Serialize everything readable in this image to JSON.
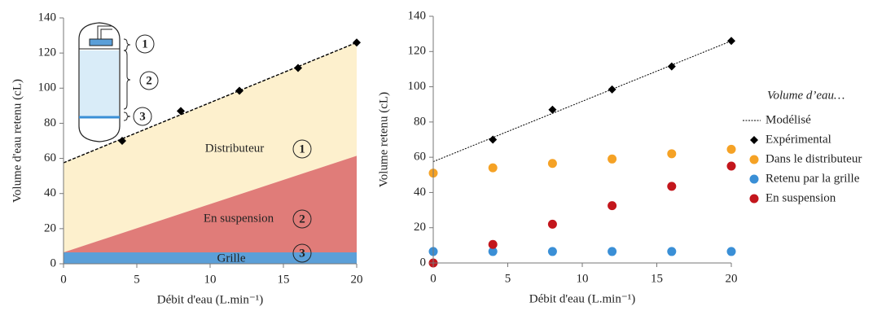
{
  "chart_data": [
    {
      "type": "area",
      "ylabel": "Volume d'eau retenu (cL)",
      "xlabel": "Débit d'eau (L.min⁻¹)",
      "xlim": [
        0,
        20
      ],
      "ylim": [
        0,
        140
      ],
      "xticks": [
        0,
        5,
        10,
        15,
        20
      ],
      "yticks": [
        0,
        20,
        40,
        60,
        80,
        100,
        120,
        140
      ],
      "series": [
        {
          "type": "area",
          "color": "#5b9fd8",
          "x": [
            0,
            20
          ],
          "values": [
            6.5,
            6.5
          ]
        },
        {
          "type": "area",
          "color": "#e07c79",
          "x": [
            0,
            20
          ],
          "values": [
            0,
            55
          ]
        },
        {
          "type": "area",
          "color": "#fdf0cd",
          "x": [
            0,
            20
          ],
          "values": [
            51,
            64.5
          ]
        },
        {
          "type": "line",
          "color": "#000000",
          "line_style": "dashed",
          "x": [
            0,
            20
          ],
          "values": [
            57.5,
            126
          ]
        },
        {
          "type": "scatter",
          "color": "#000000",
          "marker": "diamond",
          "x": [
            4,
            8,
            12,
            16,
            20
          ],
          "values": [
            70,
            87,
            98.5,
            111.5,
            126
          ]
        }
      ],
      "annotations": [
        {
          "text": "Distributeur",
          "number": "1"
        },
        {
          "text": "En suspension",
          "number": "2"
        },
        {
          "text": "Grille",
          "number": "3"
        }
      ],
      "inset_labels": [
        "1",
        "2",
        "3"
      ]
    },
    {
      "type": "scatter",
      "ylabel": "Volume retenu (cL)",
      "xlabel": "Débit d'eau (L.min⁻¹)",
      "xlim": [
        0,
        20
      ],
      "ylim": [
        0,
        140
      ],
      "xticks": [
        0,
        5,
        10,
        15,
        20
      ],
      "yticks": [
        0,
        20,
        40,
        60,
        80,
        100,
        120,
        140
      ],
      "legend_title": "Volume d’eau…",
      "legend": "right",
      "series": [
        {
          "name": "Modélisé",
          "type": "line",
          "color": "#000000",
          "line_style": "dotted",
          "x": [
            0,
            20
          ],
          "values": [
            57.5,
            126
          ]
        },
        {
          "name": "Expérimental",
          "type": "scatter",
          "color": "#000000",
          "marker": "diamond",
          "x": [
            4,
            8,
            12,
            16,
            20
          ],
          "values": [
            70,
            87,
            98.5,
            111.5,
            126
          ]
        },
        {
          "name": "Dans le distributeur",
          "type": "scatter",
          "color": "#f5a225",
          "marker": "circle",
          "x": [
            0,
            4,
            8,
            12,
            16,
            20
          ],
          "values": [
            51,
            54,
            56.5,
            59,
            62,
            64.5
          ]
        },
        {
          "name": "Retenu par la grille",
          "type": "scatter",
          "color": "#3a8fd6",
          "marker": "circle",
          "x": [
            0,
            4,
            8,
            12,
            16,
            20
          ],
          "values": [
            6.5,
            6.5,
            6.5,
            6.5,
            6.5,
            6.5
          ]
        },
        {
          "name": "En suspension",
          "type": "scatter",
          "color": "#c3161c",
          "marker": "circle",
          "x": [
            0,
            4,
            8,
            12,
            16,
            20
          ],
          "values": [
            0,
            10.5,
            22,
            32.5,
            43.5,
            55
          ]
        }
      ]
    }
  ]
}
